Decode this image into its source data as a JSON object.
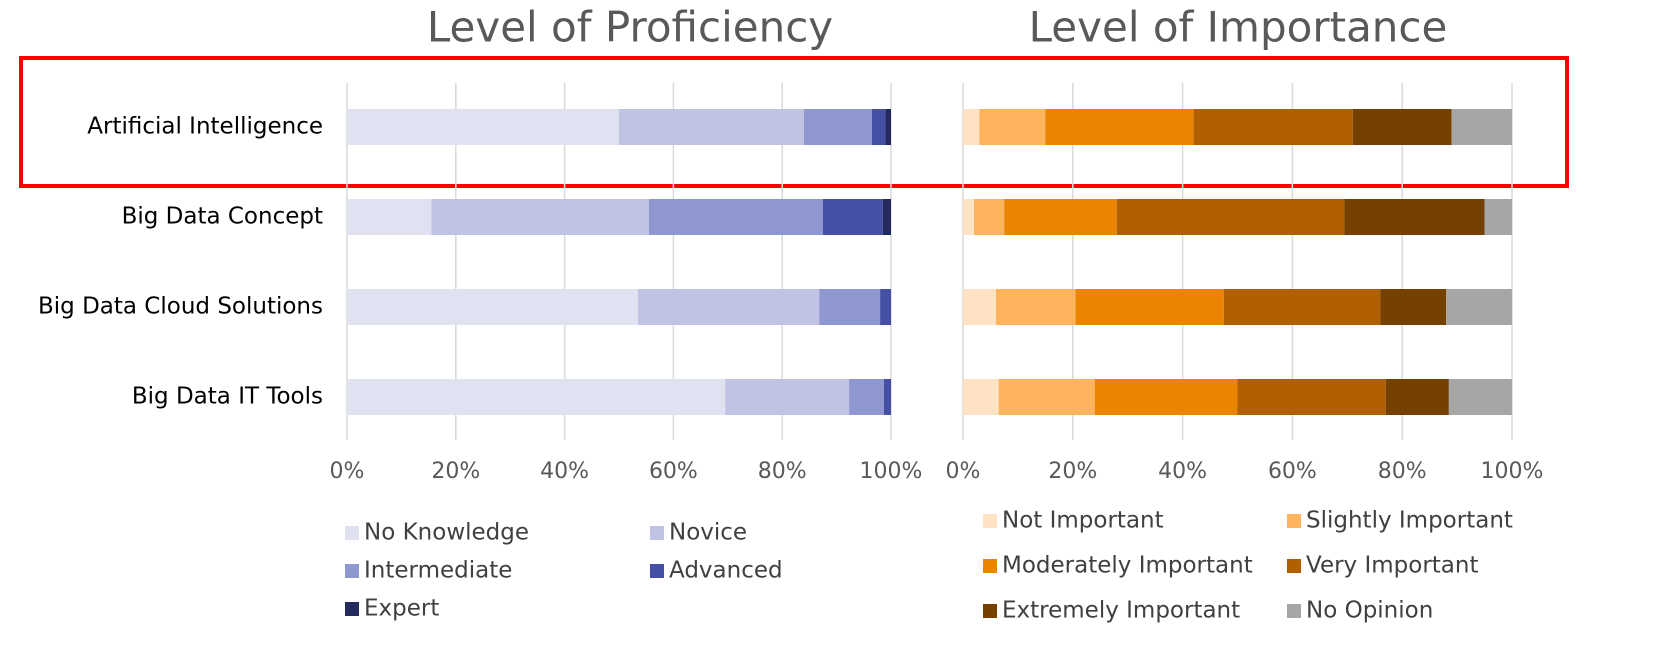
{
  "chart_data": [
    {
      "type": "stacked_barh",
      "title": "Level of Proficiency",
      "categories": [
        "Artificial Intelligence",
        "Big Data Concept",
        "Big Data Cloud Solutions",
        "Big Data IT Tools"
      ],
      "series": [
        {
          "name": "No Knowledge",
          "color": "#e0e2f2",
          "values": [
            50,
            15.5,
            53.5,
            69.5
          ]
        },
        {
          "name": "Novice",
          "color": "#c0c3e4",
          "values": [
            34,
            40,
            33.3,
            22.8
          ]
        },
        {
          "name": "Intermediate",
          "color": "#8f97d0",
          "values": [
            12.5,
            32,
            11.2,
            6.4
          ]
        },
        {
          "name": "Advanced",
          "color": "#4550a4",
          "values": [
            2.5,
            11,
            2,
            1.3
          ]
        },
        {
          "name": "Expert",
          "color": "#232a5c",
          "values": [
            1,
            1.5,
            0,
            0
          ]
        }
      ],
      "xlim": [
        0,
        100
      ],
      "xticks": [
        {
          "value": 0,
          "label": "0%"
        },
        {
          "value": 20,
          "label": "20%"
        },
        {
          "value": 40,
          "label": "40%"
        },
        {
          "value": 60,
          "label": "60%"
        },
        {
          "value": 80,
          "label": "80%"
        },
        {
          "value": 100,
          "label": "100%"
        }
      ],
      "grid": true
    },
    {
      "type": "stacked_barh",
      "title": "Level of Importance",
      "series": [
        {
          "name": "Not Important",
          "color": "#fde3c3",
          "values": [
            3,
            2,
            6,
            6.5
          ]
        },
        {
          "name": "Slightly Important",
          "color": "#fdb45c",
          "values": [
            12,
            5.5,
            14.5,
            17.5
          ]
        },
        {
          "name": "Moderately Important",
          "color": "#eb8400",
          "values": [
            27,
            20.5,
            27,
            26
          ]
        },
        {
          "name": "Very Important",
          "color": "#b06000",
          "values": [
            29,
            41.5,
            28.5,
            27
          ]
        },
        {
          "name": "Extremely Important",
          "color": "#754000",
          "values": [
            18,
            25.5,
            12,
            11.5
          ]
        },
        {
          "name": "No Opinion",
          "color": "#a6a6a6",
          "values": [
            11,
            5,
            12,
            11.5
          ]
        }
      ],
      "xlim": [
        0,
        100
      ],
      "xticks": [
        {
          "value": 0,
          "label": "0%"
        },
        {
          "value": 20,
          "label": "20%"
        },
        {
          "value": 40,
          "label": "40%"
        },
        {
          "value": 60,
          "label": "60%"
        },
        {
          "value": 80,
          "label": "80%"
        },
        {
          "value": 100,
          "label": "100%"
        }
      ],
      "grid": true
    }
  ]
}
